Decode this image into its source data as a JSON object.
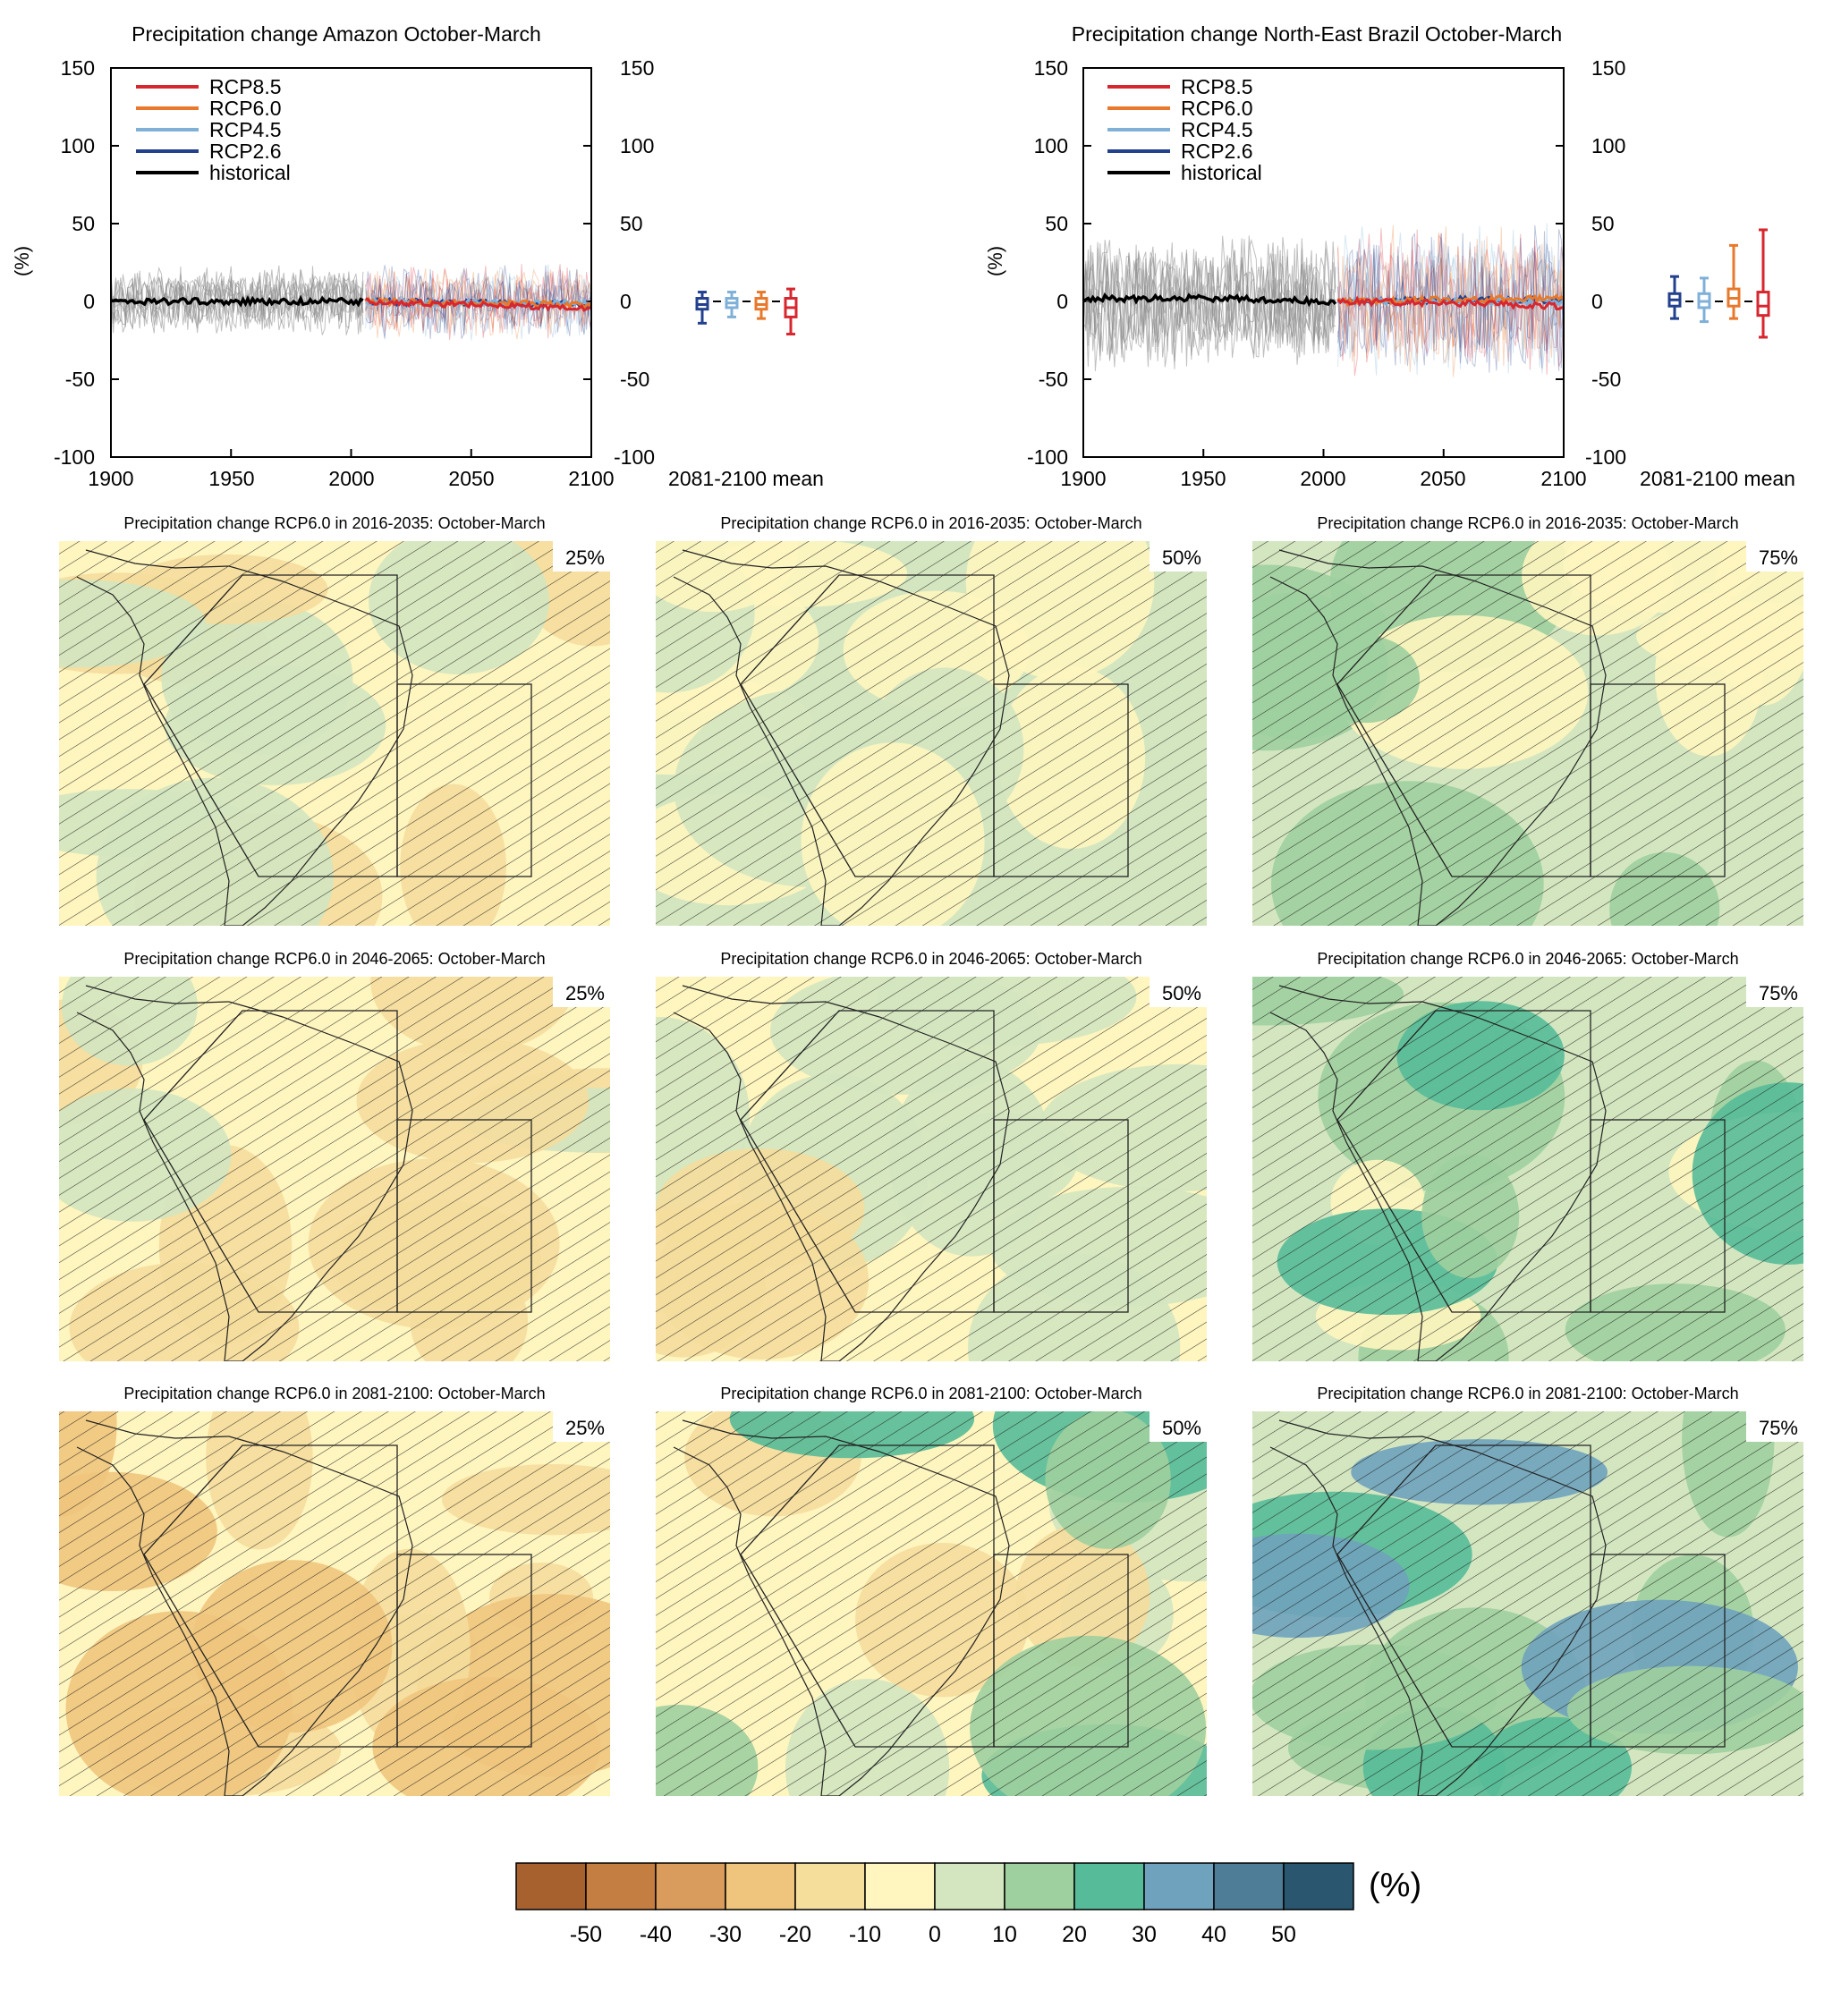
{
  "time_series": [
    {
      "title": "Precipitation change Amazon October-March",
      "ylabel": "(%)",
      "ylim": [
        -100,
        150
      ],
      "yticks": [
        "150",
        "100",
        "50",
        "0",
        "-50",
        "-100"
      ],
      "xticks": [
        "1900",
        "1950",
        "2000",
        "2050",
        "2100"
      ],
      "box_label": "2081-2100 mean",
      "legend": [
        "RCP8.5",
        "RCP6.0",
        "RCP4.5",
        "RCP2.6",
        "historical"
      ],
      "spread_hist": 18,
      "spread_fut": 20,
      "boxes": [
        {
          "scenario": "RCP2.6",
          "min": -14,
          "q1": -5,
          "median": -2,
          "q3": 2,
          "max": 6
        },
        {
          "scenario": "RCP4.5",
          "min": -10,
          "q1": -4,
          "median": -1,
          "q3": 2,
          "max": 6
        },
        {
          "scenario": "RCP6.0",
          "min": -11,
          "q1": -5,
          "median": -2,
          "q3": 2,
          "max": 6
        },
        {
          "scenario": "RCP8.5",
          "min": -21,
          "q1": -10,
          "median": -4,
          "q3": 2,
          "max": 8
        }
      ]
    },
    {
      "title": "Precipitation change North-East Brazil October-March",
      "ylabel": "(%)",
      "ylim": [
        -100,
        150
      ],
      "yticks": [
        "150",
        "100",
        "50",
        "0",
        "-50",
        "-100"
      ],
      "xticks": [
        "1900",
        "1950",
        "2000",
        "2050",
        "2100"
      ],
      "box_label": "2081-2100 mean",
      "legend": [
        "RCP8.5",
        "RCP6.0",
        "RCP4.5",
        "RCP2.6",
        "historical"
      ],
      "spread_hist": 35,
      "spread_fut": 40,
      "boxes": [
        {
          "scenario": "RCP2.6",
          "min": -11,
          "q1": -3,
          "median": 1,
          "q3": 5,
          "max": 16
        },
        {
          "scenario": "RCP4.5",
          "min": -13,
          "q1": -4,
          "median": 0,
          "q3": 5,
          "max": 15
        },
        {
          "scenario": "RCP6.0",
          "min": -11,
          "q1": -3,
          "median": 2,
          "q3": 8,
          "max": 36
        },
        {
          "scenario": "RCP8.5",
          "min": -23,
          "q1": -9,
          "median": -3,
          "q3": 6,
          "max": 46
        }
      ]
    }
  ],
  "colors": {
    "RCP8.5": "#d7262e",
    "RCP6.0": "#e8792c",
    "RCP4.5": "#7fb0d8",
    "RCP2.6": "#23408e",
    "historical": "#000000"
  },
  "maps": [
    {
      "title": "Precipitation change RCP6.0 in 2016-2035: October-March",
      "percentile": "25%"
    },
    {
      "title": "Precipitation change RCP6.0 in 2016-2035: October-March",
      "percentile": "50%"
    },
    {
      "title": "Precipitation change RCP6.0 in 2016-2035: October-March",
      "percentile": "75%"
    },
    {
      "title": "Precipitation change RCP6.0 in 2046-2065: October-March",
      "percentile": "25%"
    },
    {
      "title": "Precipitation change RCP6.0 in 2046-2065: October-March",
      "percentile": "50%"
    },
    {
      "title": "Precipitation change RCP6.0 in 2046-2065: October-March",
      "percentile": "75%"
    },
    {
      "title": "Precipitation change RCP6.0 in 2081-2100: October-March",
      "percentile": "25%"
    },
    {
      "title": "Precipitation change RCP6.0 in 2081-2100: October-March",
      "percentile": "50%"
    },
    {
      "title": "Precipitation change RCP6.0 in 2081-2100: October-March",
      "percentile": "75%"
    }
  ],
  "colorbar": {
    "unit": "(%)",
    "colors": [
      "#a7612f",
      "#c47e41",
      "#d99c5c",
      "#efc57d",
      "#f5dd9c",
      "#fef5bf",
      "#d3e6c0",
      "#9ecf9f",
      "#56bb98",
      "#6fa2bc",
      "#4e7d97",
      "#2a5670"
    ],
    "labels": [
      "-50",
      "-40",
      "-30",
      "-20",
      "-10",
      "0",
      "10",
      "20",
      "30",
      "40",
      "50"
    ]
  },
  "chart_data": [
    {
      "type": "line",
      "title": "Precipitation change Amazon October-March",
      "xlabel": "",
      "ylabel": "(%)",
      "xlim": [
        1900,
        2100
      ],
      "ylim": [
        -100,
        150
      ],
      "series": [
        {
          "name": "historical",
          "x": [
            1900,
            1950,
            2005
          ],
          "values": [
            0,
            0,
            0
          ]
        },
        {
          "name": "RCP2.6",
          "x": [
            2006,
            2050,
            2100
          ],
          "values": [
            0,
            -1,
            -2
          ]
        },
        {
          "name": "RCP4.5",
          "x": [
            2006,
            2050,
            2100
          ],
          "values": [
            0,
            -1,
            -1
          ]
        },
        {
          "name": "RCP6.0",
          "x": [
            2006,
            2050,
            2100
          ],
          "values": [
            0,
            -1,
            -2
          ]
        },
        {
          "name": "RCP8.5",
          "x": [
            2006,
            2050,
            2100
          ],
          "values": [
            0,
            -2,
            -5
          ]
        }
      ]
    },
    {
      "type": "line",
      "title": "Precipitation change North-East Brazil October-March",
      "xlabel": "",
      "ylabel": "(%)",
      "xlim": [
        1900,
        2100
      ],
      "ylim": [
        -100,
        150
      ],
      "series": [
        {
          "name": "historical",
          "x": [
            1900,
            1950,
            2005
          ],
          "values": [
            2,
            2,
            0
          ]
        },
        {
          "name": "RCP2.6",
          "x": [
            2006,
            2050,
            2100
          ],
          "values": [
            0,
            1,
            1
          ]
        },
        {
          "name": "RCP4.5",
          "x": [
            2006,
            2050,
            2100
          ],
          "values": [
            0,
            0,
            0
          ]
        },
        {
          "name": "RCP6.0",
          "x": [
            2006,
            2050,
            2100
          ],
          "values": [
            0,
            1,
            2
          ]
        },
        {
          "name": "RCP8.5",
          "x": [
            2006,
            2050,
            2100
          ],
          "values": [
            0,
            -1,
            -3
          ]
        }
      ]
    }
  ]
}
